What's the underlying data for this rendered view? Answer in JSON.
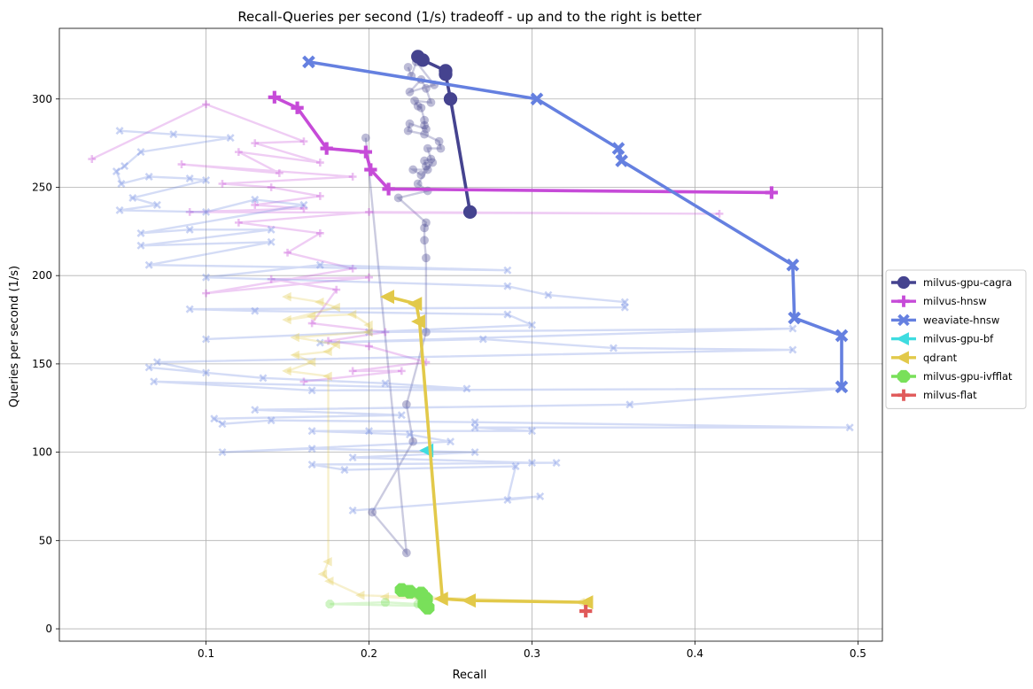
{
  "chart_data": {
    "type": "line",
    "title": "Recall-Queries per second (1/s) tradeoff - up and to the right is better",
    "xlabel": "Recall",
    "ylabel": "Queries per second (1/s)",
    "xlim": [
      0.01,
      0.515
    ],
    "ylim": [
      -7,
      340
    ],
    "xticks": [
      0.1,
      0.2,
      0.3,
      0.4,
      0.5
    ],
    "yticks": [
      0,
      50,
      100,
      150,
      200,
      250,
      300
    ],
    "grid": true,
    "legend_position": "right-outside",
    "series": [
      {
        "name": "milvus-gpu-cagra",
        "color": "#45438f",
        "marker": "circle",
        "frontier": [
          [
            0.23,
            324
          ],
          [
            0.233,
            322
          ],
          [
            0.247,
            316
          ],
          [
            0.247,
            314
          ],
          [
            0.25,
            300
          ],
          [
            0.262,
            236
          ]
        ],
        "points": [
          [
            0.224,
            318
          ],
          [
            0.226,
            313
          ],
          [
            0.229,
            321
          ],
          [
            0.24,
            308
          ],
          [
            0.225,
            304
          ],
          [
            0.232,
            311
          ],
          [
            0.235,
            306
          ],
          [
            0.238,
            298
          ],
          [
            0.228,
            299
          ],
          [
            0.23,
            296
          ],
          [
            0.232,
            295
          ],
          [
            0.234,
            288
          ],
          [
            0.234,
            285
          ],
          [
            0.235,
            283
          ],
          [
            0.225,
            286
          ],
          [
            0.224,
            282
          ],
          [
            0.234,
            280
          ],
          [
            0.243,
            276
          ],
          [
            0.244,
            272
          ],
          [
            0.236,
            272
          ],
          [
            0.238,
            266
          ],
          [
            0.234,
            265
          ],
          [
            0.235,
            262
          ],
          [
            0.236,
            260
          ],
          [
            0.227,
            260
          ],
          [
            0.232,
            257
          ],
          [
            0.239,
            264
          ],
          [
            0.23,
            252
          ],
          [
            0.236,
            248
          ],
          [
            0.218,
            244
          ],
          [
            0.235,
            230
          ],
          [
            0.234,
            227
          ],
          [
            0.234,
            220
          ],
          [
            0.235,
            210
          ],
          [
            0.235,
            168
          ],
          [
            0.223,
            127
          ],
          [
            0.227,
            106
          ],
          [
            0.202,
            66
          ],
          [
            0.223,
            43
          ],
          [
            0.198,
            278
          ]
        ]
      },
      {
        "name": "milvus-hnsw",
        "color": "#c64bd8",
        "marker": "plus",
        "frontier": [
          [
            0.142,
            301
          ],
          [
            0.156,
            295
          ],
          [
            0.174,
            272
          ],
          [
            0.198,
            270
          ],
          [
            0.201,
            260
          ],
          [
            0.212,
            249
          ],
          [
            0.447,
            247
          ]
        ],
        "points": [
          [
            0.03,
            266
          ],
          [
            0.1,
            297
          ],
          [
            0.16,
            276
          ],
          [
            0.13,
            275
          ],
          [
            0.17,
            264
          ],
          [
            0.12,
            270
          ],
          [
            0.145,
            258
          ],
          [
            0.085,
            263
          ],
          [
            0.19,
            256
          ],
          [
            0.11,
            252
          ],
          [
            0.14,
            250
          ],
          [
            0.17,
            245
          ],
          [
            0.13,
            240
          ],
          [
            0.16,
            238
          ],
          [
            0.09,
            236
          ],
          [
            0.415,
            235
          ],
          [
            0.2,
            236
          ],
          [
            0.12,
            230
          ],
          [
            0.17,
            224
          ],
          [
            0.15,
            213
          ],
          [
            0.19,
            204
          ],
          [
            0.1,
            190
          ],
          [
            0.2,
            199
          ],
          [
            0.14,
            198
          ],
          [
            0.18,
            192
          ],
          [
            0.165,
            173
          ],
          [
            0.21,
            168
          ],
          [
            0.175,
            163
          ],
          [
            0.2,
            160
          ],
          [
            0.235,
            151
          ],
          [
            0.19,
            146
          ],
          [
            0.22,
            146
          ],
          [
            0.16,
            140
          ]
        ]
      },
      {
        "name": "weaviate-hnsw",
        "color": "#6580e0",
        "marker": "x",
        "frontier": [
          [
            0.163,
            321
          ],
          [
            0.303,
            300
          ],
          [
            0.353,
            272
          ],
          [
            0.355,
            265
          ],
          [
            0.46,
            206
          ],
          [
            0.461,
            176
          ],
          [
            0.49,
            166
          ],
          [
            0.49,
            137
          ]
        ],
        "points": [
          [
            0.047,
            282
          ],
          [
            0.08,
            280
          ],
          [
            0.115,
            278
          ],
          [
            0.06,
            270
          ],
          [
            0.05,
            262
          ],
          [
            0.045,
            259
          ],
          [
            0.048,
            252
          ],
          [
            0.065,
            256
          ],
          [
            0.09,
            255
          ],
          [
            0.1,
            254
          ],
          [
            0.055,
            244
          ],
          [
            0.07,
            240
          ],
          [
            0.047,
            237
          ],
          [
            0.1,
            236
          ],
          [
            0.13,
            243
          ],
          [
            0.16,
            240
          ],
          [
            0.06,
            224
          ],
          [
            0.09,
            226
          ],
          [
            0.14,
            226
          ],
          [
            0.06,
            217
          ],
          [
            0.14,
            219
          ],
          [
            0.065,
            206
          ],
          [
            0.285,
            203
          ],
          [
            0.17,
            206
          ],
          [
            0.1,
            199
          ],
          [
            0.285,
            194
          ],
          [
            0.31,
            189
          ],
          [
            0.357,
            185
          ],
          [
            0.357,
            182
          ],
          [
            0.09,
            181
          ],
          [
            0.13,
            180
          ],
          [
            0.285,
            178
          ],
          [
            0.3,
            172
          ],
          [
            0.1,
            164
          ],
          [
            0.2,
            168
          ],
          [
            0.46,
            170
          ],
          [
            0.17,
            162
          ],
          [
            0.27,
            164
          ],
          [
            0.35,
            159
          ],
          [
            0.46,
            158
          ],
          [
            0.07,
            151
          ],
          [
            0.1,
            145
          ],
          [
            0.065,
            148
          ],
          [
            0.135,
            142
          ],
          [
            0.21,
            139
          ],
          [
            0.26,
            136
          ],
          [
            0.068,
            140
          ],
          [
            0.165,
            135
          ],
          [
            0.49,
            136
          ],
          [
            0.36,
            127
          ],
          [
            0.13,
            124
          ],
          [
            0.22,
            121
          ],
          [
            0.105,
            119
          ],
          [
            0.11,
            116
          ],
          [
            0.14,
            118
          ],
          [
            0.265,
            117
          ],
          [
            0.495,
            114
          ],
          [
            0.265,
            114
          ],
          [
            0.3,
            112
          ],
          [
            0.2,
            112
          ],
          [
            0.165,
            112
          ],
          [
            0.225,
            110
          ],
          [
            0.25,
            106
          ],
          [
            0.11,
            100
          ],
          [
            0.165,
            102
          ],
          [
            0.265,
            100
          ],
          [
            0.19,
            97
          ],
          [
            0.3,
            94
          ],
          [
            0.315,
            94
          ],
          [
            0.165,
            93
          ],
          [
            0.185,
            90
          ],
          [
            0.29,
            92
          ],
          [
            0.285,
            73
          ],
          [
            0.305,
            75
          ],
          [
            0.19,
            67
          ]
        ]
      },
      {
        "name": "milvus-gpu-bf",
        "color": "#3fdce0",
        "marker": "triangle-left",
        "frontier": [
          [
            0.236,
            101
          ]
        ],
        "points": []
      },
      {
        "name": "qdrant",
        "color": "#e2c94a",
        "marker": "triangle-left",
        "frontier": [
          [
            0.212,
            188
          ],
          [
            0.229,
            184
          ],
          [
            0.231,
            174
          ],
          [
            0.245,
            17
          ],
          [
            0.262,
            16
          ],
          [
            0.334,
            15
          ]
        ],
        "points": [
          [
            0.15,
            188
          ],
          [
            0.17,
            185
          ],
          [
            0.18,
            182
          ],
          [
            0.15,
            175
          ],
          [
            0.165,
            177
          ],
          [
            0.19,
            178
          ],
          [
            0.2,
            172
          ],
          [
            0.2,
            168
          ],
          [
            0.155,
            165
          ],
          [
            0.18,
            161
          ],
          [
            0.175,
            157
          ],
          [
            0.155,
            155
          ],
          [
            0.165,
            151
          ],
          [
            0.15,
            146
          ],
          [
            0.175,
            143
          ],
          [
            0.175,
            38
          ],
          [
            0.172,
            31
          ],
          [
            0.176,
            27
          ],
          [
            0.195,
            19
          ],
          [
            0.33,
            15
          ],
          [
            0.26,
            16
          ],
          [
            0.21,
            18
          ]
        ]
      },
      {
        "name": "milvus-gpu-ivfflat",
        "color": "#79e05a",
        "marker": "octagon",
        "frontier": [
          [
            0.22,
            22
          ],
          [
            0.225,
            21
          ],
          [
            0.232,
            20
          ],
          [
            0.235,
            17
          ],
          [
            0.234,
            14
          ],
          [
            0.236,
            12
          ]
        ],
        "points": [
          [
            0.228,
            20
          ],
          [
            0.23,
            19
          ],
          [
            0.232,
            17
          ],
          [
            0.234,
            15
          ],
          [
            0.233,
            13
          ],
          [
            0.176,
            14
          ],
          [
            0.21,
            15
          ],
          [
            0.23,
            14
          ],
          [
            0.235,
            16
          ]
        ]
      },
      {
        "name": "milvus-flat",
        "color": "#e05a5a",
        "marker": "plus",
        "frontier": [
          [
            0.333,
            10
          ]
        ],
        "points": []
      }
    ]
  }
}
